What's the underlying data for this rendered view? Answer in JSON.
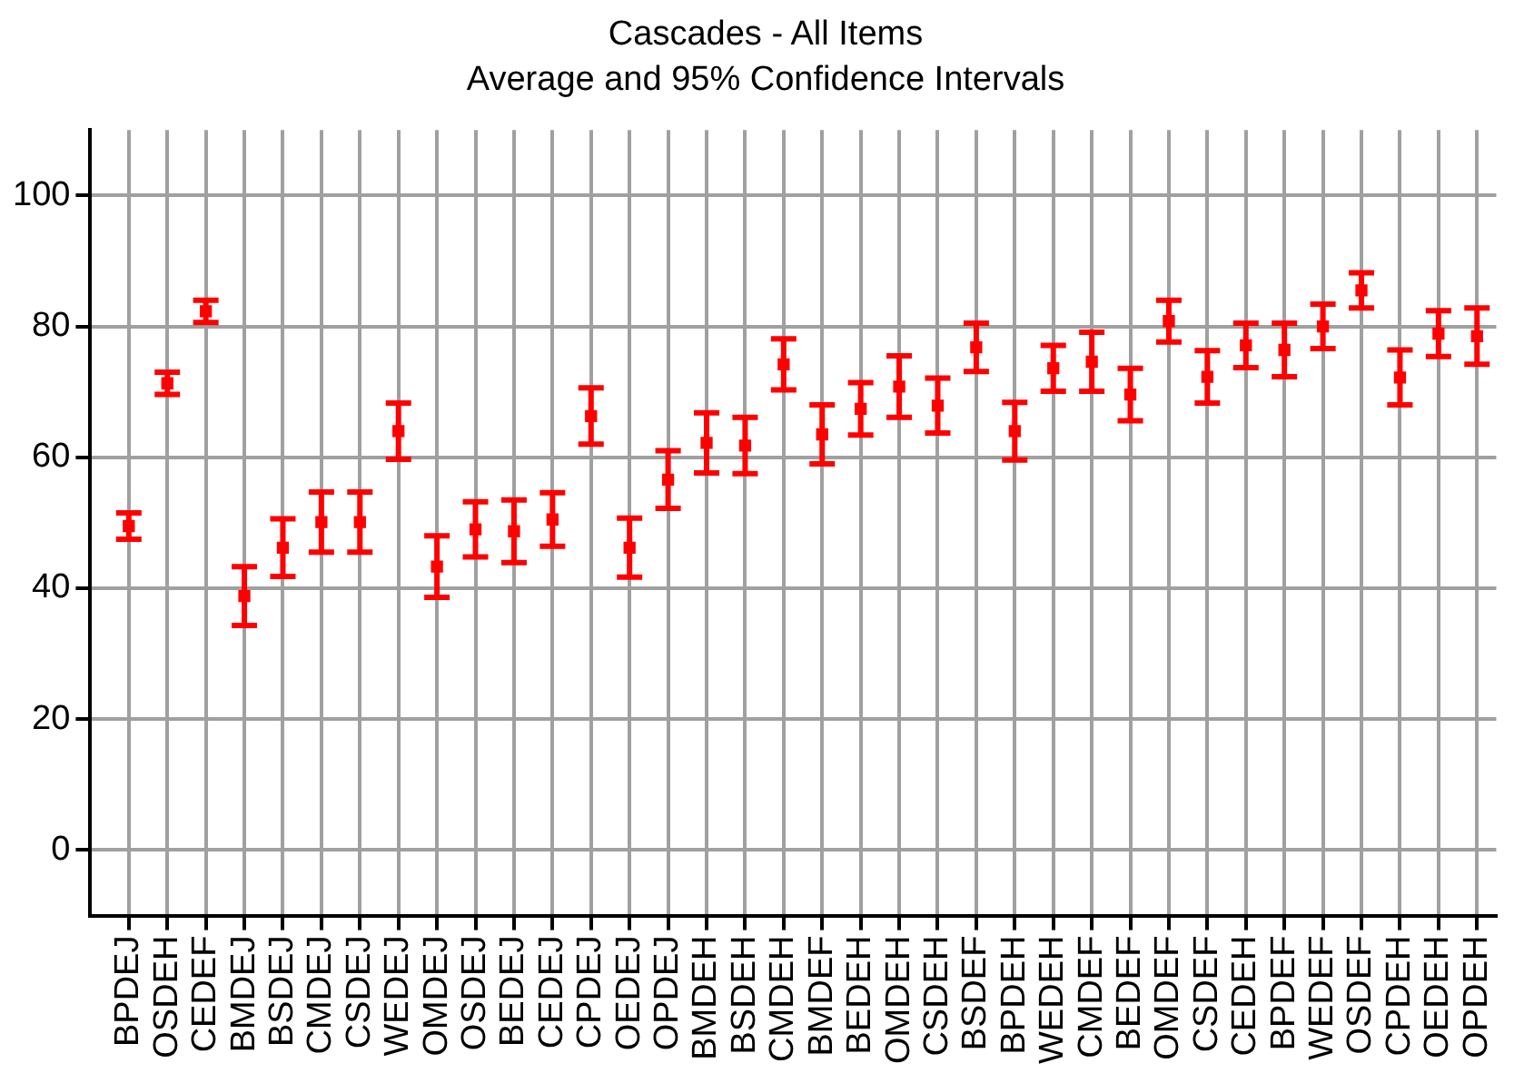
{
  "chart_data": {
    "type": "scatter",
    "title": "Cascades - All Items",
    "subtitle": "Average and 95% Confidence Intervals",
    "categories": [
      "BPDEJ",
      "OSDEH",
      "CEDEF",
      "BMDEJ",
      "BSDEJ",
      "CMDEJ",
      "CSDEJ",
      "WEDEJ",
      "OMDEJ",
      "OSDEJ",
      "BEDEJ",
      "CEDEJ",
      "CPDEJ",
      "OEDEJ",
      "OPDEJ",
      "BMDEH",
      "BSDEH",
      "CMDEH",
      "BMDEF",
      "BEDEH",
      "OMDEH",
      "CSDEH",
      "BSDEF",
      "BPDEH",
      "WEDEH",
      "CMDEF",
      "BEDEF",
      "OMDEF",
      "CSDEF",
      "CEDEH",
      "BPDEF",
      "WEDEF",
      "OSDEF",
      "CPDEH",
      "OEDEH",
      "OPDEH"
    ],
    "series": [
      {
        "color": "#ff0000",
        "values": [
          49.5,
          71.3,
          82.3,
          38.8,
          46.2,
          50.1,
          50.1,
          64,
          43.3,
          49,
          48.7,
          50.5,
          66.3,
          46.2,
          56.6,
          62.2,
          61.8,
          74.2,
          63.5,
          67.4,
          70.8,
          67.9,
          76.8,
          64,
          73.6,
          74.6,
          69.6,
          80.8,
          72.3,
          77.1,
          76.4,
          80,
          85.5,
          72.2,
          78.9,
          78.5
        ],
        "errors": [
          2,
          1.7,
          1.7,
          4.5,
          4.4,
          4.6,
          4.6,
          4.3,
          4.7,
          4.2,
          4.8,
          4.1,
          4.3,
          4.5,
          4.4,
          4.6,
          4.3,
          3.9,
          4.5,
          4,
          4.7,
          4.2,
          3.7,
          4.4,
          3.5,
          4.5,
          4,
          3.2,
          4,
          3.4,
          4.1,
          3.4,
          2.7,
          4.2,
          3.5,
          4.3
        ]
      }
    ],
    "ylim": [
      -10,
      110
    ],
    "yticks": [
      0,
      20,
      40,
      60,
      80,
      100
    ],
    "grid": true,
    "legend": false,
    "marker": "square"
  }
}
